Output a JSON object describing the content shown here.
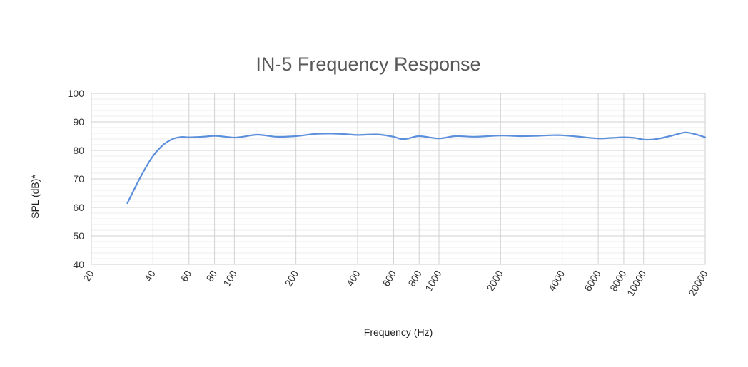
{
  "chart_data": {
    "type": "line",
    "title": "IN-5 Frequency Response",
    "xlabel": "Frequency (Hz)",
    "ylabel": "SPL (dB)*",
    "x_scale": "log",
    "xlim": [
      20,
      20000
    ],
    "ylim": [
      40,
      100
    ],
    "x_ticks": [
      20,
      40,
      60,
      80,
      100,
      200,
      400,
      600,
      800,
      1000,
      2000,
      4000,
      6000,
      8000,
      10000,
      20000
    ],
    "y_ticks": [
      40,
      50,
      60,
      70,
      80,
      90,
      100
    ],
    "grid": true,
    "legend": "none",
    "line_color": "#5b8fdc",
    "series": [
      {
        "x": [
          30,
          35,
          40,
          45,
          50,
          55,
          60,
          70,
          80,
          90,
          100,
          110,
          130,
          160,
          200,
          250,
          300,
          350,
          400,
          500,
          600,
          650,
          700,
          800,
          1000,
          1200,
          1500,
          2000,
          2500,
          3000,
          3500,
          4000,
          5000,
          6000,
          7000,
          8000,
          9000,
          10000,
          11000,
          12000,
          14000,
          16000,
          18000,
          20000
        ],
        "values": [
          61.5,
          71,
          78,
          82,
          84,
          84.7,
          84.6,
          84.8,
          85.1,
          84.8,
          84.5,
          84.8,
          85.5,
          84.8,
          85,
          85.8,
          85.9,
          85.7,
          85.4,
          85.6,
          84.8,
          84,
          84.1,
          85,
          84.2,
          85,
          84.8,
          85.2,
          85,
          85.1,
          85.3,
          85.3,
          84.7,
          84.2,
          84.4,
          84.6,
          84.4,
          83.8,
          83.8,
          84.2,
          85.3,
          86.3,
          85.6,
          84.6
        ]
      }
    ]
  }
}
